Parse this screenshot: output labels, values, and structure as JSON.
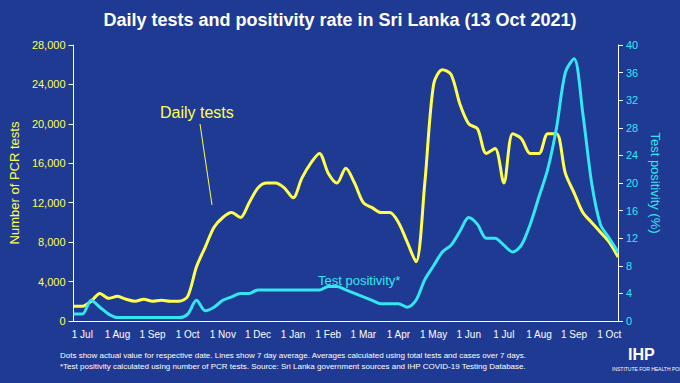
{
  "chart_data": {
    "type": "line",
    "title": "Daily tests and positivity rate in Sri Lanka (13 Oct 2021)",
    "y_label": "Number of PCR tests",
    "y2_label": "Test positivity (%)",
    "categories": [
      null,
      "1 Jul",
      null,
      null,
      null,
      "1 Aug",
      null,
      null,
      null,
      "1 Sep",
      null,
      null,
      null,
      "1 Oct",
      null,
      null,
      null,
      "1 Nov",
      null,
      null,
      null,
      "1 Dec",
      null,
      null,
      null,
      "1 Jan",
      null,
      null,
      null,
      "1 Feb",
      null,
      null,
      null,
      "1 Mar",
      null,
      null,
      null,
      "1 Apr",
      null,
      null,
      null,
      "1 May",
      null,
      null,
      null,
      "1 Jun",
      null,
      null,
      null,
      "1 Jul",
      null,
      null,
      null,
      "1 Aug",
      null,
      null,
      null,
      "1 Sep",
      null,
      null,
      null,
      "1 Oct",
      null
    ],
    "series": [
      {
        "name": "Daily tests",
        "color": "#ffff4d",
        "axis": "y",
        "values": [
          1500,
          1500,
          2000,
          2800,
          2300,
          2500,
          2200,
          2000,
          2200,
          2000,
          2100,
          2000,
          2000,
          2500,
          5500,
          7500,
          9500,
          10500,
          11000,
          10500,
          12000,
          13500,
          14000,
          14000,
          13500,
          12500,
          14500,
          16000,
          17000,
          15000,
          14000,
          15500,
          14000,
          12000,
          11500,
          11000,
          11000,
          10000,
          8000,
          6000,
          14000,
          24000,
          25500,
          25000,
          22000,
          20000,
          19500,
          17000,
          17500,
          14000,
          19000,
          18500,
          17000,
          17000,
          19000,
          19000,
          15000,
          13000,
          11000,
          10000,
          9000,
          8000,
          6500
        ]
      },
      {
        "name": "Test positivity*",
        "color": "#33e6f0",
        "axis": "y2",
        "values": [
          1,
          1,
          3,
          2,
          1,
          0.5,
          0.5,
          0.5,
          0.5,
          0.5,
          0.5,
          0.5,
          0.5,
          1,
          3,
          1.5,
          2,
          3,
          3.5,
          4,
          4,
          4.5,
          4.5,
          4.5,
          4.5,
          4.5,
          4.5,
          4.5,
          4.5,
          5,
          5,
          4.5,
          4,
          3.5,
          3,
          2.5,
          2.5,
          2.5,
          2,
          3,
          6,
          8,
          10,
          11,
          13,
          15,
          14,
          12,
          12,
          11,
          10,
          11,
          14,
          18,
          22,
          28,
          36,
          38,
          30,
          20,
          14,
          12,
          10
        ]
      }
    ],
    "ylim": [
      0,
      28000
    ],
    "yticks": [
      0,
      {
        "value": 4000,
        "label": "4,000"
      },
      {
        "value": 8000,
        "label": "8,000"
      },
      {
        "value": 12000,
        "label": "12,000"
      },
      {
        "value": 16000,
        "label": "16,000"
      },
      {
        "value": 20000,
        "label": "20,000"
      },
      {
        "value": 24000,
        "label": "24,000"
      },
      {
        "value": 28000,
        "label": "28,000"
      }
    ],
    "y2lim": [
      0,
      40
    ],
    "y2ticks": [
      0,
      4,
      8,
      12,
      16,
      20,
      24,
      28,
      32,
      36,
      40
    ],
    "grid": false,
    "notes": [
      "Dots show actual value for respective date. Lines show 7 day average. Averages calculated using total tests and cases over 7 days.",
      "*Test positivity calculated using number of PCR tests. Source: Sri Lanka government sources and IHP COVID-19 Testing Database."
    ],
    "logo": {
      "text": "IHP",
      "subtitle": "INSTITUTE FOR HEALTH POLICY"
    }
  }
}
